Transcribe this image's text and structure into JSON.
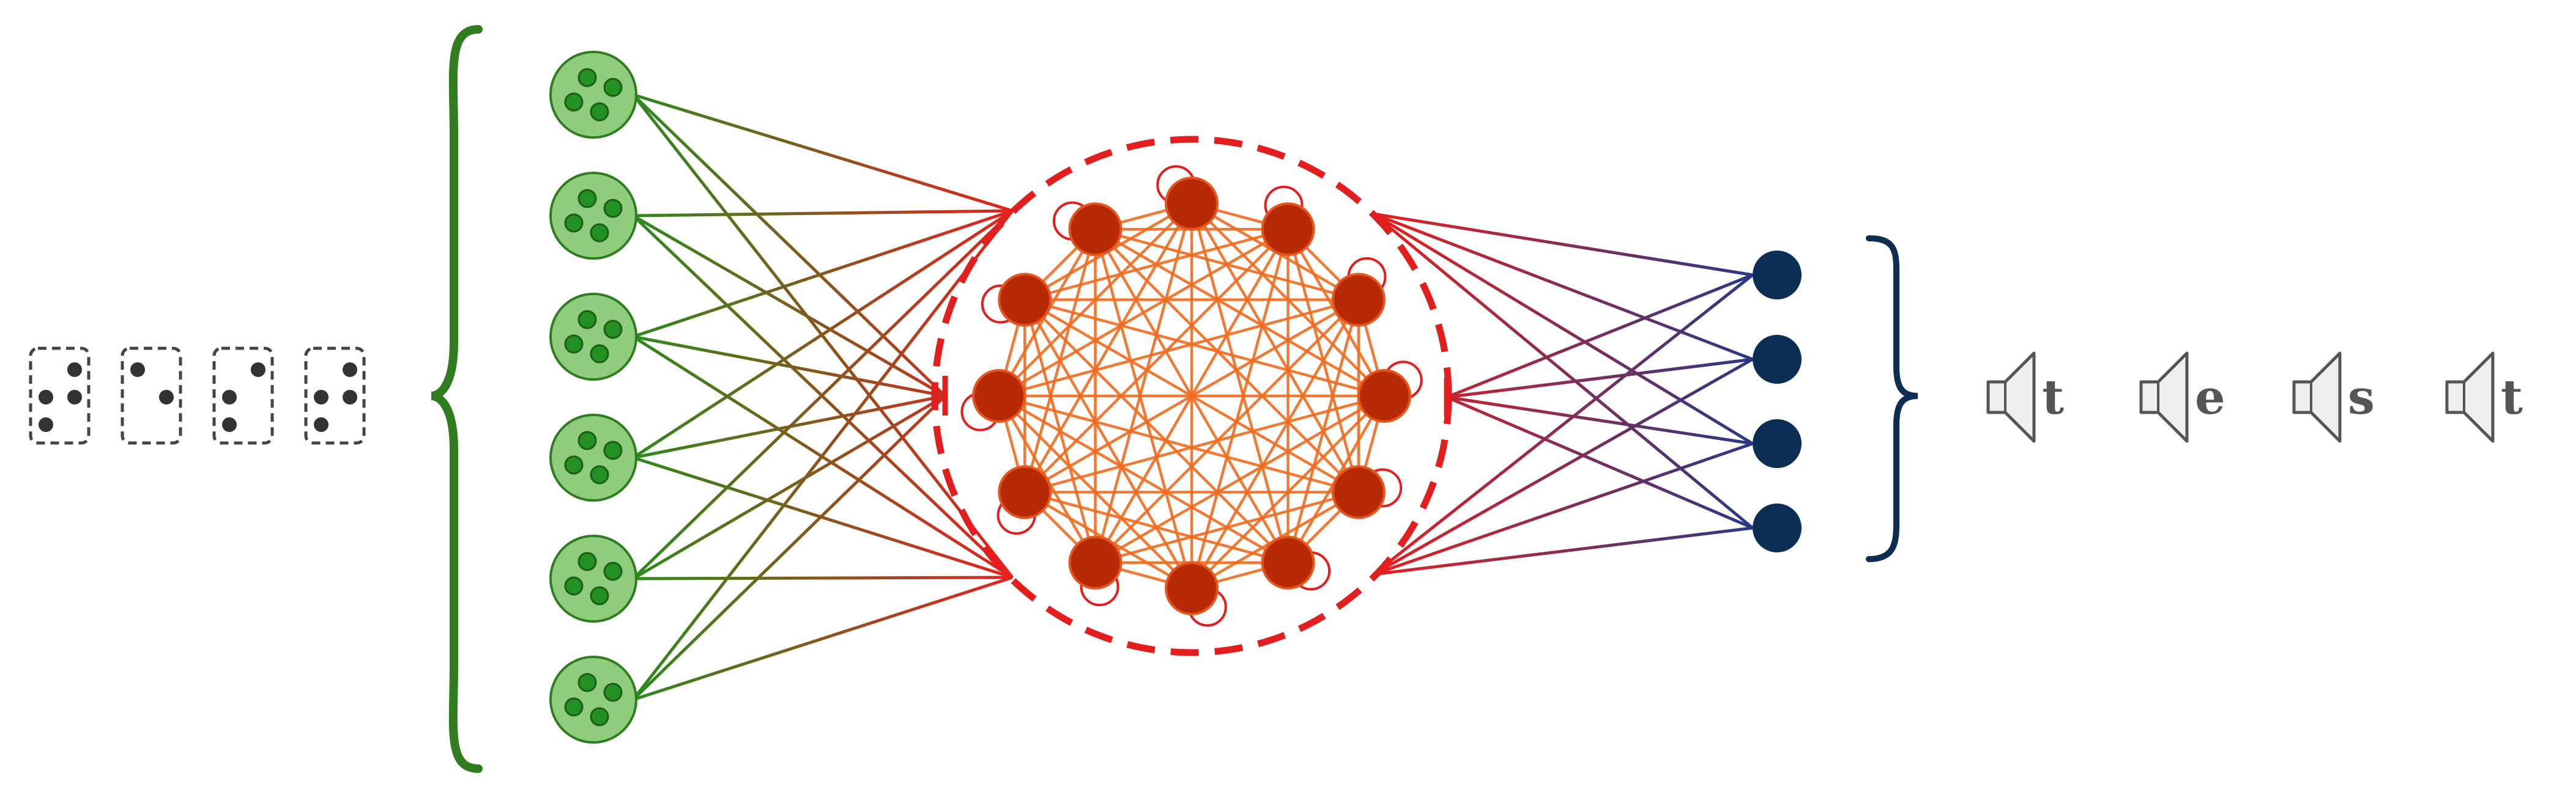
{
  "braille_cells": [
    {
      "char": "t",
      "dots": [
        2,
        3,
        4,
        5
      ]
    },
    {
      "char": "e",
      "dots": [
        1,
        5
      ]
    },
    {
      "char": "s",
      "dots": [
        2,
        3,
        4
      ]
    },
    {
      "char": "t",
      "dots": [
        2,
        3,
        4,
        5
      ]
    }
  ],
  "input_neurons": {
    "count": 6,
    "sub_dots": 4
  },
  "reservoir": {
    "count": 12,
    "self_loops": true,
    "fully_connected": true
  },
  "output_neurons": {
    "count": 4
  },
  "speech_letters": [
    "t",
    "e",
    "s",
    "t"
  ],
  "colors": {
    "input_fill": "#90cc7e",
    "input_stroke": "#2e7d1f",
    "input_dot": "#229022",
    "input_brace": "#2f7d1e",
    "reservoir_fill": "#b82a05",
    "reservoir_stroke": "#e4561d",
    "reservoir_edges": "#ef6a1d",
    "reservoir_boundary": "#e21e1e",
    "output_fill": "#0c2e55",
    "output_brace": "#0d2d52",
    "braille_border": "#444444",
    "braille_dot": "#333333",
    "speaker_fill": "#efefef",
    "speaker_stroke": "#555555",
    "letter": "#555555"
  }
}
